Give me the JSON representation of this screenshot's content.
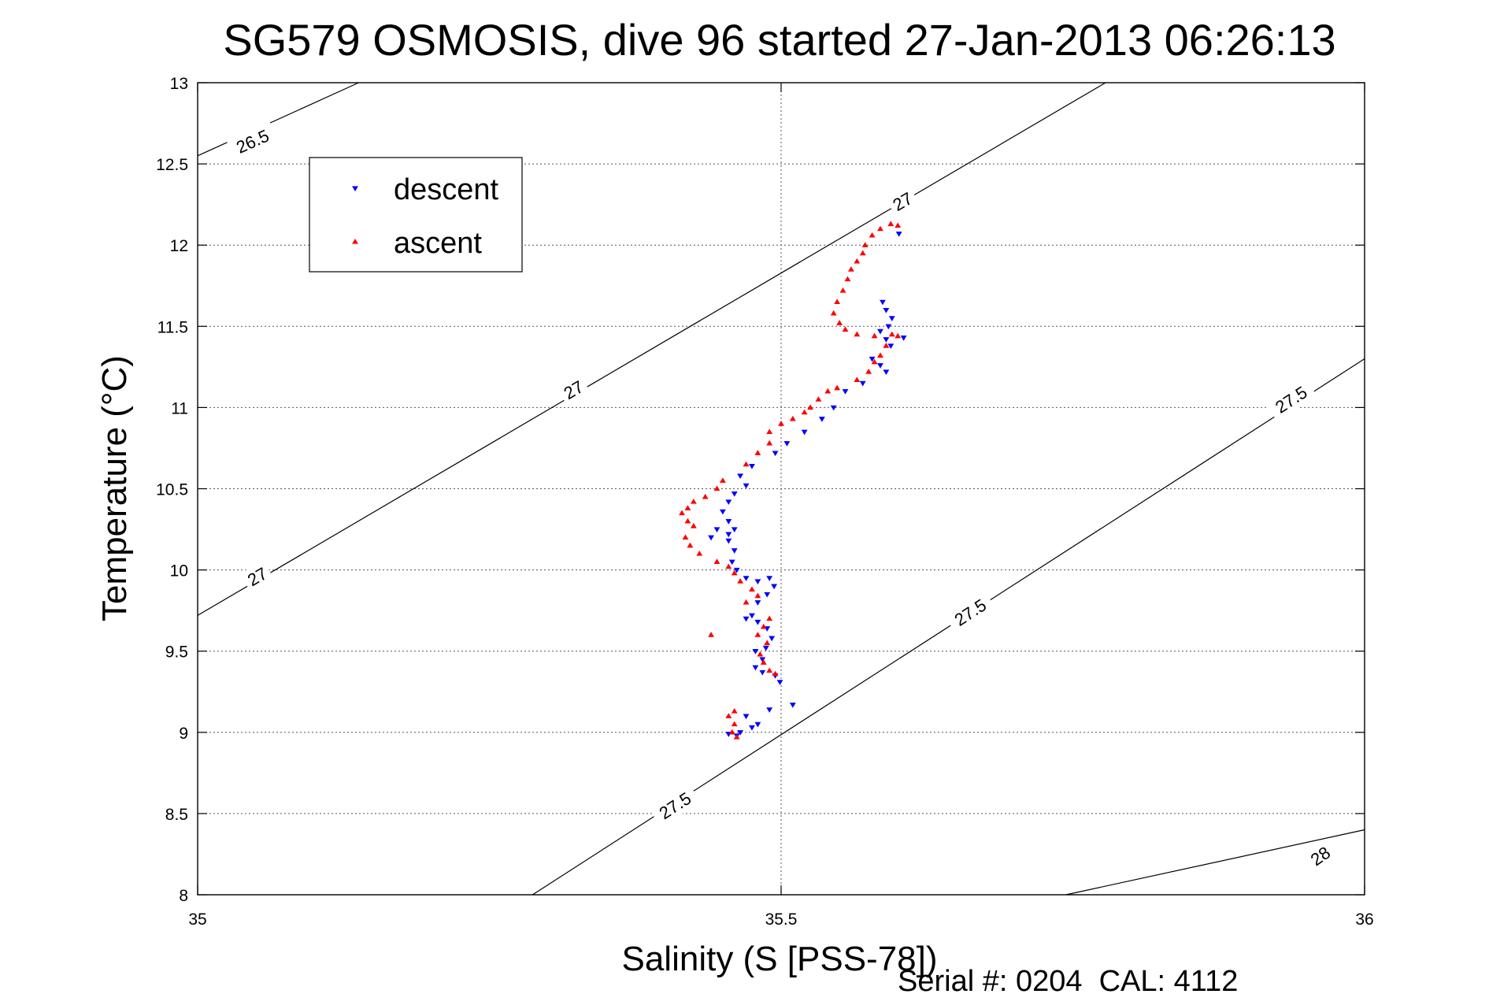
{
  "chart_data": {
    "type": "scatter",
    "title": "SG579 OSMOSIS, dive 96 started 27-Jan-2013 06:26:13",
    "xlabel": "Salinity (S [PSS-78])",
    "ylabel": "Temperature (°C)",
    "xlim": [
      35,
      36
    ],
    "ylim": [
      8,
      13
    ],
    "x_ticks": [
      "35",
      "35.5",
      "36"
    ],
    "y_ticks": [
      "8",
      "8.5",
      "9",
      "9.5",
      "10",
      "10.5",
      "11",
      "11.5",
      "12",
      "12.5",
      "13"
    ],
    "grid": true,
    "legend_position": "top-left",
    "footer": "Serial #: 0204  CAL: 4112",
    "density_contours": [
      {
        "label": "26.5",
        "points": [
          [
            35.0,
            12.55
          ],
          [
            35.138,
            13.0
          ]
        ]
      },
      {
        "label": "27",
        "points": [
          [
            35.0,
            9.72
          ],
          [
            35.778,
            13.0
          ]
        ]
      },
      {
        "label": "27.5",
        "points": [
          [
            35.287,
            8.0
          ],
          [
            36.0,
            11.3
          ]
        ]
      },
      {
        "label": "28",
        "points": [
          [
            35.744,
            8.0
          ],
          [
            36.0,
            8.4
          ]
        ]
      }
    ],
    "contour_labels": [
      {
        "text": "26.5",
        "x": 35.047,
        "y": 12.64,
        "angle": -24
      },
      {
        "text": "27",
        "x": 35.604,
        "y": 12.27,
        "angle": -30
      },
      {
        "text": "27",
        "x": 35.322,
        "y": 11.11,
        "angle": -30
      },
      {
        "text": "27",
        "x": 35.051,
        "y": 9.96,
        "angle": -30
      },
      {
        "text": "27.5",
        "x": 35.937,
        "y": 11.05,
        "angle": -33
      },
      {
        "text": "27.5",
        "x": 35.662,
        "y": 9.74,
        "angle": -33
      },
      {
        "text": "27.5",
        "x": 35.409,
        "y": 8.55,
        "angle": -33
      },
      {
        "text": "28",
        "x": 35.962,
        "y": 8.24,
        "angle": -35
      }
    ],
    "series": [
      {
        "name": "descent",
        "color": "#0000ff",
        "marker": "triangle-down",
        "points": [
          [
            35.601,
            12.07
          ],
          [
            35.587,
            11.65
          ],
          [
            35.59,
            11.6
          ],
          [
            35.595,
            11.55
          ],
          [
            35.592,
            11.5
          ],
          [
            35.585,
            11.47
          ],
          [
            35.59,
            11.42
          ],
          [
            35.605,
            11.43
          ],
          [
            35.594,
            11.38
          ],
          [
            35.578,
            11.3
          ],
          [
            35.585,
            11.26
          ],
          [
            35.59,
            11.22
          ],
          [
            35.57,
            11.15
          ],
          [
            35.555,
            11.1
          ],
          [
            35.545,
            11.0
          ],
          [
            35.535,
            10.93
          ],
          [
            35.52,
            10.85
          ],
          [
            35.505,
            10.78
          ],
          [
            35.495,
            10.72
          ],
          [
            35.475,
            10.64
          ],
          [
            35.465,
            10.58
          ],
          [
            35.47,
            10.52
          ],
          [
            35.46,
            10.47
          ],
          [
            35.455,
            10.42
          ],
          [
            35.45,
            10.36
          ],
          [
            35.455,
            10.3
          ],
          [
            35.46,
            10.25
          ],
          [
            35.455,
            10.22
          ],
          [
            35.44,
            10.2
          ],
          [
            35.445,
            10.25
          ],
          [
            35.455,
            10.18
          ],
          [
            35.46,
            10.12
          ],
          [
            35.458,
            10.05
          ],
          [
            35.462,
            10.0
          ],
          [
            35.47,
            9.95
          ],
          [
            35.48,
            9.93
          ],
          [
            35.49,
            9.95
          ],
          [
            35.494,
            9.9
          ],
          [
            35.488,
            9.85
          ],
          [
            35.48,
            9.8
          ],
          [
            35.475,
            9.72
          ],
          [
            35.47,
            9.7
          ],
          [
            35.48,
            9.68
          ],
          [
            35.488,
            9.64
          ],
          [
            35.492,
            9.58
          ],
          [
            35.487,
            9.52
          ],
          [
            35.478,
            9.5
          ],
          [
            35.484,
            9.45
          ],
          [
            35.478,
            9.4
          ],
          [
            35.484,
            9.37
          ],
          [
            35.495,
            9.35
          ],
          [
            35.499,
            9.31
          ],
          [
            35.51,
            9.17
          ],
          [
            35.49,
            9.14
          ],
          [
            35.47,
            9.1
          ],
          [
            35.48,
            9.05
          ],
          [
            35.475,
            9.03
          ],
          [
            35.465,
            9.0
          ],
          [
            35.455,
            8.99
          ],
          [
            35.462,
            8.98
          ]
        ]
      },
      {
        "name": "ascent",
        "color": "#ff0000",
        "marker": "triangle-up",
        "points": [
          [
            35.594,
            12.13
          ],
          [
            35.6,
            12.12
          ],
          [
            35.585,
            12.1
          ],
          [
            35.578,
            12.06
          ],
          [
            35.572,
            12.0
          ],
          [
            35.57,
            11.95
          ],
          [
            35.565,
            11.9
          ],
          [
            35.56,
            11.85
          ],
          [
            35.557,
            11.79
          ],
          [
            35.553,
            11.72
          ],
          [
            35.548,
            11.65
          ],
          [
            35.545,
            11.58
          ],
          [
            35.55,
            11.52
          ],
          [
            35.555,
            11.48
          ],
          [
            35.565,
            11.45
          ],
          [
            35.58,
            11.44
          ],
          [
            35.595,
            11.45
          ],
          [
            35.6,
            11.44
          ],
          [
            35.59,
            11.38
          ],
          [
            35.585,
            11.32
          ],
          [
            35.58,
            11.28
          ],
          [
            35.575,
            11.22
          ],
          [
            35.565,
            11.17
          ],
          [
            35.548,
            11.12
          ],
          [
            35.54,
            11.1
          ],
          [
            35.532,
            11.05
          ],
          [
            35.525,
            11.0
          ],
          [
            35.52,
            10.97
          ],
          [
            35.51,
            10.93
          ],
          [
            35.5,
            10.9
          ],
          [
            35.49,
            10.85
          ],
          [
            35.49,
            10.78
          ],
          [
            35.48,
            10.72
          ],
          [
            35.47,
            10.65
          ],
          [
            35.45,
            10.55
          ],
          [
            35.445,
            10.5
          ],
          [
            35.435,
            10.45
          ],
          [
            35.425,
            10.42
          ],
          [
            35.42,
            10.38
          ],
          [
            35.415,
            10.35
          ],
          [
            35.42,
            10.3
          ],
          [
            35.425,
            10.27
          ],
          [
            35.418,
            10.2
          ],
          [
            35.422,
            10.15
          ],
          [
            35.43,
            10.1
          ],
          [
            35.445,
            10.05
          ],
          [
            35.455,
            10.02
          ],
          [
            35.46,
            9.98
          ],
          [
            35.465,
            9.93
          ],
          [
            35.475,
            9.88
          ],
          [
            35.48,
            9.84
          ],
          [
            35.47,
            9.8
          ],
          [
            35.49,
            9.7
          ],
          [
            35.485,
            9.65
          ],
          [
            35.48,
            9.6
          ],
          [
            35.488,
            9.55
          ],
          [
            35.482,
            9.48
          ],
          [
            35.485,
            9.43
          ],
          [
            35.49,
            9.38
          ],
          [
            35.495,
            9.36
          ],
          [
            35.44,
            9.6
          ],
          [
            35.46,
            9.13
          ],
          [
            35.455,
            9.1
          ],
          [
            35.46,
            9.05
          ],
          [
            35.458,
            9.0
          ],
          [
            35.462,
            8.97
          ]
        ]
      }
    ]
  }
}
